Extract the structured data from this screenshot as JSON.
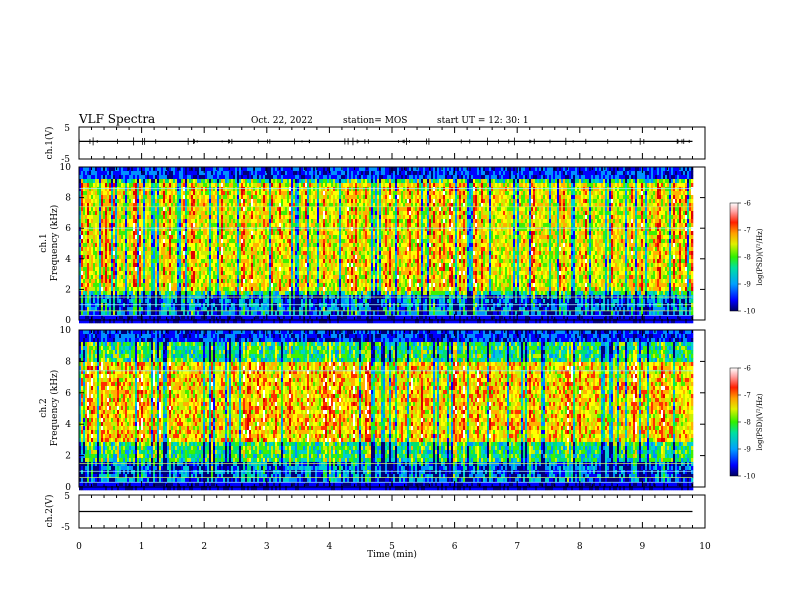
{
  "header": {
    "title": "VLF Spectra",
    "date": "Oct. 22, 2022",
    "station": "station= MOS",
    "start": "start UT =  12: 30: 1"
  },
  "colors": {
    "colormap": [
      "#00007a",
      "#0000ff",
      "#0090ff",
      "#00d0d0",
      "#00e070",
      "#40f000",
      "#c8f000",
      "#ffff00",
      "#ffb000",
      "#ff3000",
      "#e00000",
      "#ffffff"
    ]
  },
  "chart_data": [
    {
      "type": "line",
      "panel": "ch1-waveform",
      "ylabel": "ch.1(V)",
      "ylim": [
        -5,
        5
      ],
      "yticks": [
        5,
        -5
      ],
      "x_range_min": [
        0,
        9.8
      ],
      "approx_level_v": 0.5
    },
    {
      "type": "heatmap",
      "panel": "ch1-spectrogram",
      "ylabel": "ch.1 Frequency (kHz)",
      "ylim": [
        0,
        10
      ],
      "yticks": [
        0,
        2,
        4,
        6,
        8,
        10
      ],
      "x_range_min": [
        0,
        9.8
      ],
      "colorbar": {
        "label": "log(PSD)(V²/Hz)",
        "ticks": [
          -6,
          -7,
          -8,
          -9,
          -10
        ],
        "range": [
          -10,
          -6
        ]
      },
      "dominant_band_khz": [
        2,
        9
      ],
      "quiet_band_khz": [
        0.5,
        1.8
      ],
      "horizontal_lines_khz": [
        0.3,
        0.6,
        1.0,
        1.5,
        6.0,
        7.4,
        8.6
      ]
    },
    {
      "type": "heatmap",
      "panel": "ch2-spectrogram",
      "ylabel": "ch.2 Frequency (kHz)",
      "ylim": [
        0,
        10
      ],
      "yticks": [
        0,
        2,
        4,
        6,
        8,
        10
      ],
      "x_range_min": [
        0,
        9.8
      ],
      "colorbar": {
        "label": "log(PSD)(V²/Hz)",
        "ticks": [
          -6,
          -7,
          -8,
          -9,
          -10
        ],
        "range": [
          -10,
          -6
        ]
      },
      "dominant_band_khz": [
        3,
        8
      ],
      "quiet_band_khz": [
        0.5,
        1.8
      ],
      "horizontal_lines_khz": [
        0.3,
        0.6,
        1.0,
        1.5,
        7.4
      ]
    },
    {
      "type": "line",
      "panel": "ch2-waveform",
      "ylabel": "ch.2(V)",
      "ylim": [
        -5,
        5
      ],
      "yticks": [
        5,
        -5
      ],
      "x_range_min": [
        0,
        9.8
      ],
      "approx_level_v": 0.0
    }
  ],
  "x_axis": {
    "label": "Time (min)",
    "range": [
      0,
      10
    ],
    "ticks": [
      "0",
      "1",
      "2",
      "3",
      "4",
      "5",
      "6",
      "7",
      "8",
      "9",
      "10"
    ]
  }
}
